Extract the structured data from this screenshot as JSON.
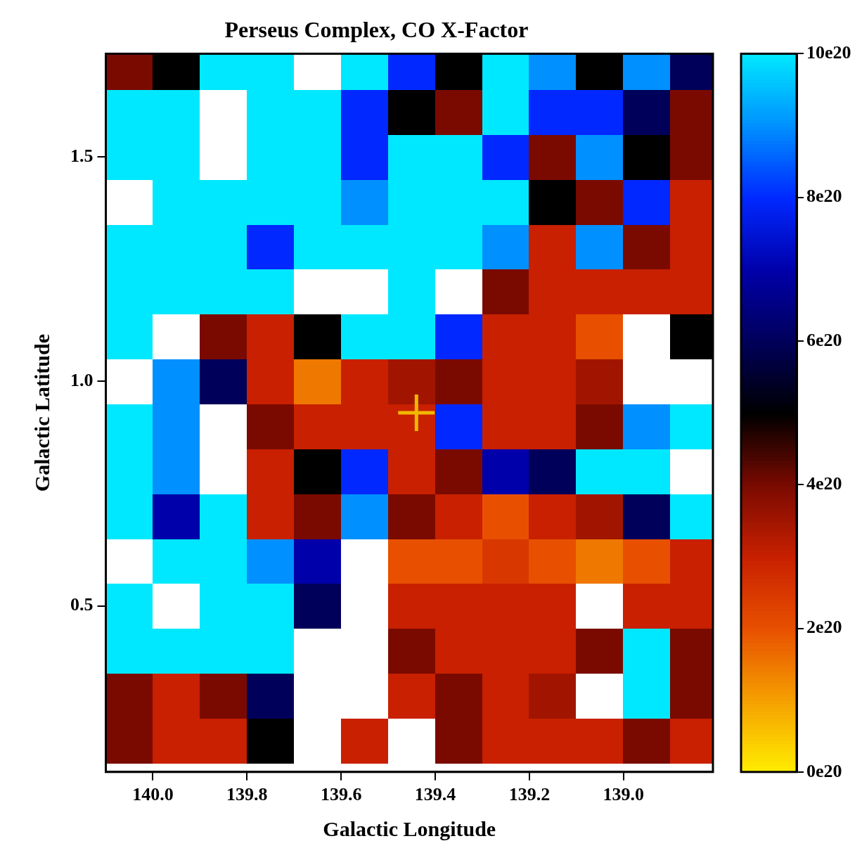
{
  "chart_data": {
    "type": "heatmap",
    "title": "Perseus Complex, CO X-Factor",
    "x_label": "Galactic Longitude",
    "y_label": "Galactic Latitude",
    "x": [
      140.05,
      139.95,
      139.85,
      139.75,
      139.65,
      139.55,
      139.45,
      139.35,
      139.25,
      139.15,
      139.05,
      138.95,
      138.85
    ],
    "y": [
      0.2,
      0.3,
      0.4,
      0.5,
      0.6,
      0.7,
      0.8,
      0.9,
      1.0,
      1.1,
      1.2,
      1.3,
      1.4,
      1.5,
      1.6,
      1.7
    ],
    "cells": [
      [
        4e+20,
        3e+20,
        3e+20,
        5e+20,
        1.2e+21,
        3e+20,
        1.2e+21,
        4e+20,
        3e+20,
        3e+20,
        3e+20,
        4e+20,
        3e+20
      ],
      [
        4e+20,
        3e+20,
        4e+20,
        6e+20,
        1.2e+21,
        1.2e+21,
        3e+20,
        4e+20,
        3e+20,
        3.5e+20,
        1.2e+21,
        1e+21,
        4e+20
      ],
      [
        1e+21,
        1e+21,
        1e+21,
        1e+21,
        1.2e+21,
        1.2e+21,
        4e+20,
        3e+20,
        3e+20,
        3e+20,
        4e+20,
        1e+21,
        4e+20
      ],
      [
        1e+21,
        1.2e+21,
        1e+21,
        1e+21,
        6e+20,
        1.2e+21,
        3e+20,
        3e+20,
        3e+20,
        3e+20,
        1.1e+21,
        3e+20,
        3e+20
      ],
      [
        1.1e+21,
        1e+21,
        1e+21,
        9e+20,
        7e+20,
        1.2e+21,
        2e+20,
        2e+20,
        2.5e+20,
        2e+20,
        1.5e+20,
        2e+20,
        3e+20
      ],
      [
        1e+21,
        7e+20,
        1e+21,
        3e+20,
        4e+20,
        9e+20,
        4e+20,
        3e+20,
        2e+20,
        3e+20,
        3.5e+20,
        6e+20,
        1e+21
      ],
      [
        1e+21,
        9e+20,
        1.2e+21,
        3e+20,
        5e+20,
        8e+20,
        3e+20,
        4e+20,
        7e+20,
        6e+20,
        1e+21,
        1e+21,
        1.2e+21
      ],
      [
        1e+21,
        9e+20,
        1.2e+21,
        4e+20,
        3e+20,
        3e+20,
        3e+20,
        8e+20,
        3e+20,
        3e+20,
        4e+20,
        9e+20,
        1e+21
      ],
      [
        1.1e+21,
        9e+20,
        6e+20,
        3e+20,
        1.5e+20,
        3e+20,
        3.5e+20,
        4e+20,
        3e+20,
        3e+20,
        3.5e+20,
        1.2e+21,
        1.2e+21
      ],
      [
        1e+21,
        1.2e+21,
        4e+20,
        3e+20,
        5e+20,
        1e+21,
        1e+21,
        8e+20,
        3e+20,
        3e+20,
        2e+20,
        1.2e+21,
        5e+20
      ],
      [
        1e+21,
        1e+21,
        1e+21,
        1e+21,
        1.2e+21,
        1.2e+21,
        1e+21,
        1.2e+21,
        4e+20,
        3e+20,
        3e+20,
        3e+20,
        3e+20
      ],
      [
        1e+21,
        1e+21,
        1e+21,
        8e+20,
        1e+21,
        1e+21,
        1e+21,
        1e+21,
        9e+20,
        3e+20,
        9e+20,
        4e+20,
        3e+20
      ],
      [
        1.2e+21,
        1e+21,
        1e+21,
        1e+21,
        1e+21,
        9e+20,
        1e+21,
        1e+21,
        1e+21,
        5e+20,
        4e+20,
        8e+20,
        3e+20
      ],
      [
        1e+21,
        1e+21,
        1.2e+21,
        1e+21,
        1e+21,
        8e+20,
        1e+21,
        1e+21,
        8e+20,
        4e+20,
        9e+20,
        5e+20,
        4e+20
      ],
      [
        1e+21,
        1e+21,
        1.2e+21,
        1e+21,
        1e+21,
        8e+20,
        5e+20,
        4e+20,
        1e+21,
        8e+20,
        8e+20,
        6e+20,
        4e+20
      ],
      [
        4e+20,
        5e+20,
        1e+21,
        1e+21,
        1.2e+21,
        1e+21,
        8e+20,
        5e+20,
        1e+21,
        9e+20,
        5e+20,
        9e+20,
        6e+20
      ]
    ],
    "xlim": [
      140.1,
      138.81
    ],
    "ylim": [
      0.13,
      1.73
    ],
    "xticks": [
      {
        "value": 140,
        "label": "140.0"
      },
      139.8,
      139.6,
      139.4,
      139.2,
      {
        "value": 139,
        "label": "139.0"
      }
    ],
    "yticks": [
      0.5,
      {
        "value": 1,
        "label": "1.0"
      },
      1.5
    ],
    "colorbar_range": [
      0,
      1e+21
    ],
    "colorbar_ticks": [
      {
        "value": 0,
        "label": "0e20"
      },
      {
        "value": 2e+20,
        "label": "2e20"
      },
      {
        "value": 4e+20,
        "label": "4e20"
      },
      {
        "value": 6e+20,
        "label": "6e20"
      },
      {
        "value": 8e+20,
        "label": "8e20"
      },
      {
        "value": 1e+21,
        "label": "10e20"
      }
    ],
    "points": {
      "x": [
        139.44
      ],
      "y": [
        0.93
      ],
      "marker": "cross",
      "color": "#f0b800"
    },
    "grid": false
  }
}
